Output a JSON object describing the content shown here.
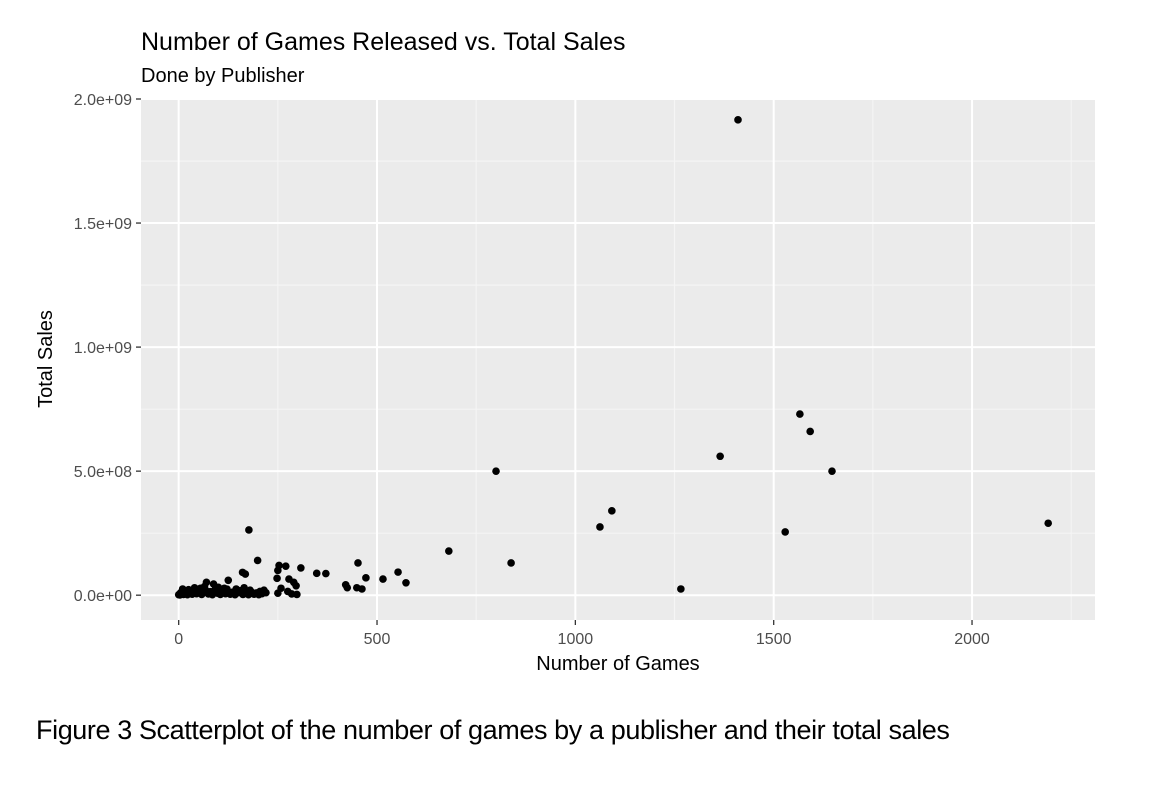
{
  "figure": {
    "caption": "Figure 3 Scatterplot of the number of games by a publisher and their total sales"
  },
  "colors": {
    "panel_bg": "#ebebeb",
    "grid_major": "#ffffff",
    "grid_minor": "#f5f5f5",
    "point": "#000000",
    "tick_text": "#4d4d4d",
    "tick_mark": "#333333"
  },
  "chart_data": {
    "type": "scatter",
    "title": "Number of Games Released vs. Total Sales",
    "subtitle": "Done by Publisher",
    "xlabel": "Number of Games",
    "ylabel": "Total Sales",
    "xlim": [
      -95,
      2310
    ],
    "ylim": [
      -100000000,
      2000000000
    ],
    "x_ticks": [
      0,
      500,
      1000,
      1500,
      2000
    ],
    "x_tick_labels": [
      "0",
      "500",
      "1000",
      "1500",
      "2000"
    ],
    "y_ticks": [
      0,
      500000000,
      1000000000,
      1500000000,
      2000000000
    ],
    "y_tick_labels": [
      "0.0e+00",
      "5.0e+08",
      "1.0e+09",
      "1.5e+09",
      "2.0e+09"
    ],
    "grid": true,
    "legend": "none",
    "points": [
      {
        "x": 1410,
        "y": 1916000000
      },
      {
        "x": 1566,
        "y": 730000000
      },
      {
        "x": 1592,
        "y": 660000000
      },
      {
        "x": 1365,
        "y": 560000000
      },
      {
        "x": 1647,
        "y": 500000000
      },
      {
        "x": 800,
        "y": 500000000
      },
      {
        "x": 1092,
        "y": 340000000
      },
      {
        "x": 2192,
        "y": 290000000
      },
      {
        "x": 1062,
        "y": 275000000
      },
      {
        "x": 177,
        "y": 263000000
      },
      {
        "x": 1529,
        "y": 255000000
      },
      {
        "x": 681,
        "y": 178000000
      },
      {
        "x": 199,
        "y": 140000000
      },
      {
        "x": 838,
        "y": 130000000
      },
      {
        "x": 452,
        "y": 130000000
      },
      {
        "x": 253,
        "y": 120000000
      },
      {
        "x": 270,
        "y": 117000000
      },
      {
        "x": 308,
        "y": 110000000
      },
      {
        "x": 250,
        "y": 100000000
      },
      {
        "x": 553,
        "y": 93000000
      },
      {
        "x": 161,
        "y": 92000000
      },
      {
        "x": 168,
        "y": 85000000
      },
      {
        "x": 348,
        "y": 88000000
      },
      {
        "x": 371,
        "y": 87000000
      },
      {
        "x": 472,
        "y": 70000000
      },
      {
        "x": 248,
        "y": 68000000
      },
      {
        "x": 278,
        "y": 65000000
      },
      {
        "x": 515,
        "y": 65000000
      },
      {
        "x": 125,
        "y": 60000000
      },
      {
        "x": 290,
        "y": 52000000
      },
      {
        "x": 573,
        "y": 50000000
      },
      {
        "x": 70,
        "y": 52000000
      },
      {
        "x": 88,
        "y": 45000000
      },
      {
        "x": 421,
        "y": 42000000
      },
      {
        "x": 296,
        "y": 38000000
      },
      {
        "x": 425,
        "y": 30000000
      },
      {
        "x": 449,
        "y": 30000000
      },
      {
        "x": 462,
        "y": 25000000
      },
      {
        "x": 1266,
        "y": 25000000
      },
      {
        "x": 258,
        "y": 28000000
      },
      {
        "x": 275,
        "y": 15000000
      },
      {
        "x": 250,
        "y": 8000000
      },
      {
        "x": 285,
        "y": 5000000
      },
      {
        "x": 298,
        "y": 3000000
      },
      {
        "x": 40,
        "y": 30000000
      },
      {
        "x": 55,
        "y": 28000000
      },
      {
        "x": 100,
        "y": 32000000
      },
      {
        "x": 145,
        "y": 25000000
      },
      {
        "x": 180,
        "y": 20000000
      },
      {
        "x": 205,
        "y": 15000000
      },
      {
        "x": 215,
        "y": 20000000
      },
      {
        "x": 10,
        "y": 25000000
      },
      {
        "x": 5,
        "y": 10000000
      },
      {
        "x": 0,
        "y": 2000000
      },
      {
        "x": 3,
        "y": 1000000
      },
      {
        "x": 8,
        "y": 5000000
      },
      {
        "x": 12,
        "y": 3000000
      },
      {
        "x": 18,
        "y": 8000000
      },
      {
        "x": 22,
        "y": 2000000
      },
      {
        "x": 28,
        "y": 12000000
      },
      {
        "x": 34,
        "y": 4000000
      },
      {
        "x": 38,
        "y": 15000000
      },
      {
        "x": 45,
        "y": 6000000
      },
      {
        "x": 50,
        "y": 18000000
      },
      {
        "x": 58,
        "y": 3000000
      },
      {
        "x": 62,
        "y": 10000000
      },
      {
        "x": 68,
        "y": 20000000
      },
      {
        "x": 75,
        "y": 5000000
      },
      {
        "x": 80,
        "y": 14000000
      },
      {
        "x": 85,
        "y": 2000000
      },
      {
        "x": 92,
        "y": 22000000
      },
      {
        "x": 98,
        "y": 8000000
      },
      {
        "x": 105,
        "y": 3000000
      },
      {
        "x": 110,
        "y": 16000000
      },
      {
        "x": 118,
        "y": 6000000
      },
      {
        "x": 122,
        "y": 24000000
      },
      {
        "x": 130,
        "y": 4000000
      },
      {
        "x": 136,
        "y": 12000000
      },
      {
        "x": 142,
        "y": 2000000
      },
      {
        "x": 150,
        "y": 10000000
      },
      {
        "x": 156,
        "y": 18000000
      },
      {
        "x": 162,
        "y": 3000000
      },
      {
        "x": 170,
        "y": 8000000
      },
      {
        "x": 176,
        "y": 2000000
      },
      {
        "x": 184,
        "y": 12000000
      },
      {
        "x": 190,
        "y": 4000000
      },
      {
        "x": 196,
        "y": 9000000
      },
      {
        "x": 202,
        "y": 2000000
      },
      {
        "x": 210,
        "y": 6000000
      },
      {
        "x": 220,
        "y": 10000000
      },
      {
        "x": 15,
        "y": 18000000
      },
      {
        "x": 25,
        "y": 22000000
      },
      {
        "x": 65,
        "y": 35000000
      },
      {
        "x": 115,
        "y": 28000000
      },
      {
        "x": 165,
        "y": 30000000
      }
    ]
  }
}
